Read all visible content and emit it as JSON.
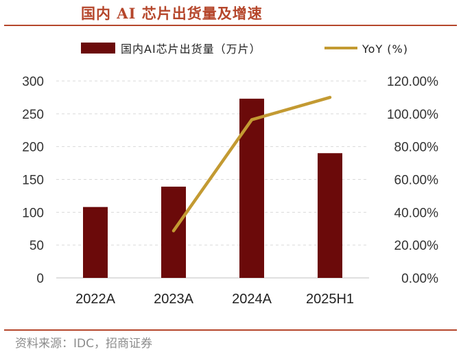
{
  "header": {
    "title": "国内 AI 芯片出货量及增速",
    "source": "资料来源：IDC，招商证券"
  },
  "colors": {
    "bar": "#6b0a0a",
    "line": "#c39a32",
    "accent": "#b5462b"
  },
  "chart_data": {
    "type": "bar+line",
    "title": "国内 AI 芯片出货量及增速",
    "categories": [
      "2022A",
      "2023A",
      "2024A",
      "2025H1"
    ],
    "series": [
      {
        "name": "国内AI芯片出货量（万片）",
        "type": "bar",
        "axis": "left",
        "values": [
          108,
          139,
          273,
          190
        ]
      },
      {
        "name": "YoY (%)",
        "type": "line",
        "axis": "right",
        "values": [
          null,
          28.7,
          96.4,
          110.0
        ]
      }
    ],
    "y_left": {
      "min": 0,
      "max": 300,
      "ticks": [
        "0",
        "50",
        "100",
        "150",
        "200",
        "250",
        "300"
      ]
    },
    "y_right": {
      "min": 0,
      "max": 120,
      "ticks": [
        "0.00%",
        "20.00%",
        "40.00%",
        "60.00%",
        "80.00%",
        "100.00%",
        "120.00%"
      ]
    },
    "grid": true,
    "legend": "top"
  }
}
